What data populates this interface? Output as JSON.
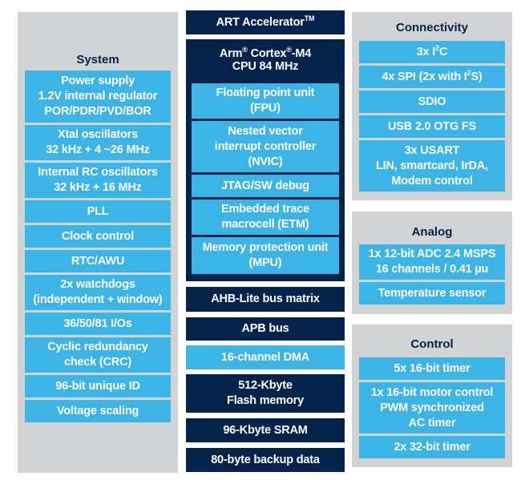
{
  "system": {
    "title": "System",
    "items": [
      {
        "lines": [
          "Power supply",
          "1.2V internal regulator",
          "POR/PDR/PVD/BOR"
        ]
      },
      {
        "lines": [
          "Xtal oscillators",
          "32 kHz + 4 ~26 MHz"
        ]
      },
      {
        "lines": [
          "Internal RC oscillators",
          "32 kHz + 16 MHz"
        ]
      },
      {
        "lines": [
          "PLL"
        ]
      },
      {
        "lines": [
          "Clock control"
        ]
      },
      {
        "lines": [
          "RTC/AWU"
        ]
      },
      {
        "lines": [
          "2x watchdogs",
          "(independent + window)"
        ]
      },
      {
        "lines": [
          "36/50/81 I/Os"
        ]
      },
      {
        "lines": [
          "Cyclic redundancy",
          "check (CRC)"
        ]
      },
      {
        "lines": [
          "96-bit unique ID"
        ]
      },
      {
        "lines": [
          "Voltage scaling"
        ]
      }
    ]
  },
  "center": {
    "art": {
      "text": "ART Accelerator",
      "tm": "TM"
    },
    "cpu": {
      "arm": "Arm",
      "reg": "®",
      "cortex": " Cortex",
      "reg2": "®",
      "model": "-M4",
      "speed": "CPU 84 MHz",
      "items": [
        {
          "lines": [
            "Floating point unit",
            "(FPU)"
          ]
        },
        {
          "lines": [
            "Nested vector",
            "interrupt controller",
            "(NVIC)"
          ]
        },
        {
          "lines": [
            "JTAG/SW debug"
          ]
        },
        {
          "lines": [
            "Embedded trace",
            "macrocell (ETM)"
          ]
        },
        {
          "lines": [
            "Memory protection unit",
            "(MPU)"
          ]
        }
      ]
    },
    "ahb": "AHB-Lite bus matrix",
    "apb": "APB bus",
    "dma": "16-channel DMA",
    "flash": [
      "512-Kbyte",
      "Flash memory"
    ],
    "sram": "96-Kbyte SRAM",
    "backup": "80-byte backup data"
  },
  "connectivity": {
    "title": "Connectivity",
    "i2c": {
      "pre": "3x I",
      "sup": "2",
      "post": "C"
    },
    "spi": {
      "pre": "4x SPI (2x with I",
      "sup": "2",
      "post": "S)"
    },
    "sdio": "SDIO",
    "usb": "USB 2.0 OTG FS",
    "usart": [
      "3x USART",
      "LIN, smartcard, IrDA,",
      "Modem control"
    ]
  },
  "analog": {
    "title": "Analog",
    "adc": [
      "1x 12-bit ADC 2.4 MSPS",
      "16 channels / 0.41 µu"
    ],
    "temp": "Temperature sensor"
  },
  "control": {
    "title": "Control",
    "items": [
      {
        "lines": [
          "5x 16-bit timer"
        ]
      },
      {
        "lines": [
          "1x 16-bit motor control",
          "PWM synchronized",
          "AC timer"
        ]
      },
      {
        "lines": [
          "2x 32-bit timer"
        ]
      }
    ]
  }
}
